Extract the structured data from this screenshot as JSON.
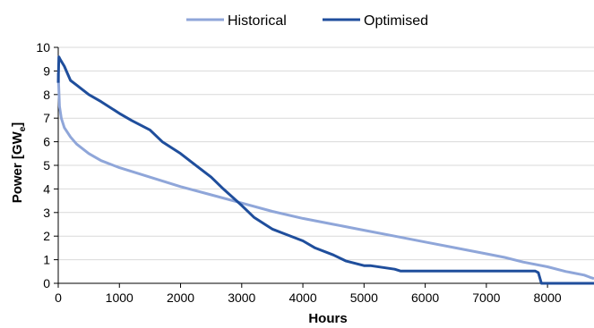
{
  "chart_data": {
    "type": "line",
    "xlabel": "Hours",
    "ylabel_main": "Power [GW",
    "ylabel_sub": "e",
    "ylabel_end": "]",
    "xlim": [
      0,
      8760
    ],
    "ylim": [
      0,
      10
    ],
    "xticks": [
      0,
      1000,
      2000,
      3000,
      4000,
      5000,
      6000,
      7000,
      8000
    ],
    "xtick_labels": [
      "0",
      "1000",
      "2000",
      "3000",
      "4000",
      "5000",
      "6000",
      "7000",
      "8000"
    ],
    "yticks": [
      0,
      1,
      2,
      3,
      4,
      5,
      6,
      7,
      8,
      9,
      10
    ],
    "ytick_labels": [
      "0",
      "1",
      "2",
      "3",
      "4",
      "5",
      "6",
      "7",
      "8",
      "9",
      "10"
    ],
    "grid": true,
    "legend_position": "top",
    "series": [
      {
        "name": "Historical",
        "color": "#8fa6d9",
        "x": [
          0,
          20,
          50,
          100,
          200,
          300,
          500,
          700,
          1000,
          1500,
          2000,
          2500,
          3000,
          3500,
          4000,
          4500,
          5000,
          5500,
          6000,
          6500,
          7000,
          7300,
          7600,
          8000,
          8300,
          8600,
          8700,
          8760
        ],
        "y": [
          8.9,
          7.5,
          7.0,
          6.6,
          6.2,
          5.9,
          5.5,
          5.2,
          4.9,
          4.5,
          4.1,
          3.75,
          3.4,
          3.05,
          2.75,
          2.5,
          2.25,
          2.0,
          1.75,
          1.5,
          1.25,
          1.1,
          0.9,
          0.7,
          0.5,
          0.35,
          0.25,
          0.2
        ]
      },
      {
        "name": "Optimised",
        "color": "#1f4e9c",
        "x": [
          0,
          10,
          30,
          100,
          150,
          200,
          300,
          500,
          700,
          1000,
          1200,
          1500,
          1700,
          2000,
          2200,
          2500,
          2700,
          3000,
          3200,
          3500,
          3700,
          4000,
          4200,
          4500,
          4700,
          5000,
          5100,
          5500,
          5600,
          6000,
          7000,
          7800,
          7850,
          7900,
          8000,
          8500,
          8760
        ],
        "y": [
          8.5,
          9.6,
          9.5,
          9.2,
          8.9,
          8.6,
          8.4,
          8.0,
          7.7,
          7.2,
          6.9,
          6.5,
          6.0,
          5.5,
          5.1,
          4.5,
          4.0,
          3.3,
          2.8,
          2.3,
          2.1,
          1.8,
          1.5,
          1.2,
          0.95,
          0.75,
          0.75,
          0.6,
          0.52,
          0.52,
          0.52,
          0.52,
          0.45,
          0.0,
          0.0,
          0.0,
          0.0
        ]
      }
    ]
  }
}
